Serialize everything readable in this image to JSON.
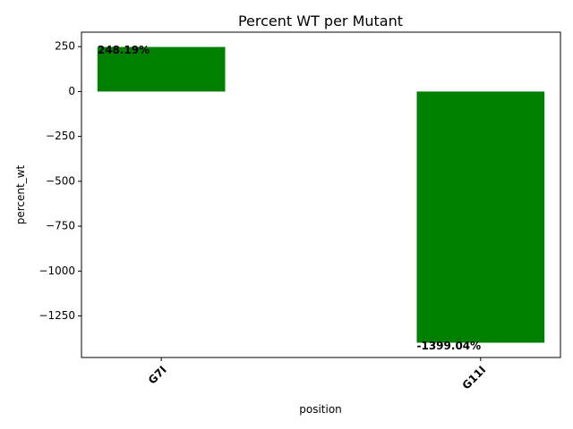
{
  "chart_data": {
    "type": "bar",
    "title": "Percent WT per Mutant",
    "xlabel": "position",
    "ylabel": "percent_wt",
    "categories": [
      "G7I",
      "G11I"
    ],
    "values": [
      248.19,
      -1399.04
    ],
    "data_labels": [
      "248.19%",
      "-1399.04%"
    ],
    "ylim": [
      -1481.4,
      330.6
    ],
    "yticks": [
      250,
      0,
      -250,
      -500,
      -750,
      -1000,
      -1250
    ],
    "ytick_labels": [
      "250",
      "0",
      "−250",
      "−500",
      "−750",
      "−1000",
      "−1250"
    ],
    "bar_color": "#008000",
    "grid": false,
    "legend": "none"
  }
}
